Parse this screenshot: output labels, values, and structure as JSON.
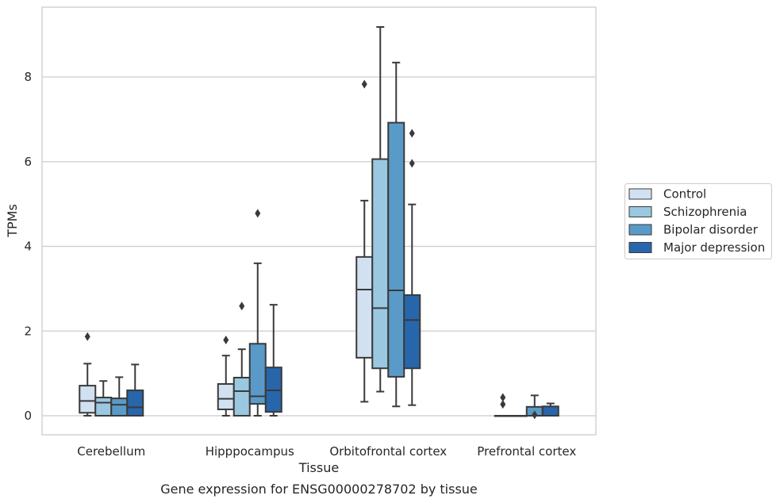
{
  "chart_data": {
    "type": "box",
    "caption": "Gene expression for ENSG00000278702 by tissue",
    "xlabel": "Tissue",
    "ylabel": "TPMs",
    "ylim": [
      -0.45,
      9.7
    ],
    "yticks": [
      0,
      2,
      4,
      6,
      8
    ],
    "grid": "horizontal",
    "legend_placement": "right, outside plot",
    "categories": [
      "Cerebellum",
      "Hipppocampus",
      "Orbitofrontal cortex",
      "Prefrontal cortex"
    ],
    "series": [
      {
        "name": "Control",
        "color": "#d1e1f1",
        "boxes": [
          {
            "whislo": 0.0,
            "q1": 0.07,
            "med": 0.35,
            "q3": 0.71,
            "whishi": 1.23,
            "fliers": [
              1.87
            ]
          },
          {
            "whislo": 0.0,
            "q1": 0.15,
            "med": 0.4,
            "q3": 0.75,
            "whishi": 1.42,
            "fliers": [
              1.79
            ]
          },
          {
            "whislo": 0.33,
            "q1": 1.37,
            "med": 2.98,
            "q3": 3.75,
            "whishi": 5.08,
            "fliers": [
              7.83
            ]
          },
          {
            "whislo": 0.0,
            "q1": 0.0,
            "med": 0.0,
            "q3": 0.0,
            "whishi": 0.0,
            "fliers": [
              0.27,
              0.43
            ]
          }
        ]
      },
      {
        "name": "Schizophrenia",
        "color": "#9ac8e0",
        "boxes": [
          {
            "whislo": 0.0,
            "q1": 0.0,
            "med": 0.31,
            "q3": 0.43,
            "whishi": 0.82,
            "fliers": []
          },
          {
            "whislo": 0.0,
            "q1": 0.0,
            "med": 0.58,
            "q3": 0.9,
            "whishi": 1.57,
            "fliers": [
              2.59
            ]
          },
          {
            "whislo": 0.57,
            "q1": 1.12,
            "med": 2.54,
            "q3": 6.06,
            "whishi": 9.18,
            "fliers": []
          },
          {
            "whislo": 0.0,
            "q1": 0.0,
            "med": 0.0,
            "q3": 0.0,
            "whishi": 0.0,
            "fliers": []
          }
        ]
      },
      {
        "name": "Bipolar disorder",
        "color": "#5a9ac8",
        "boxes": [
          {
            "whislo": 0.0,
            "q1": 0.0,
            "med": 0.26,
            "q3": 0.41,
            "whishi": 0.91,
            "fliers": []
          },
          {
            "whislo": 0.0,
            "q1": 0.28,
            "med": 0.46,
            "q3": 1.7,
            "whishi": 3.6,
            "fliers": [
              4.78
            ]
          },
          {
            "whislo": 0.22,
            "q1": 0.92,
            "med": 2.96,
            "q3": 6.92,
            "whishi": 8.34,
            "fliers": []
          },
          {
            "whislo": 0.0,
            "q1": 0.0,
            "med": 0.0,
            "q3": 0.21,
            "whishi": 0.48,
            "fliers": [
              0.02
            ]
          }
        ]
      },
      {
        "name": "Major depression",
        "color": "#2766ab",
        "boxes": [
          {
            "whislo": 0.0,
            "q1": 0.0,
            "med": 0.2,
            "q3": 0.6,
            "whishi": 1.21,
            "fliers": []
          },
          {
            "whislo": 0.0,
            "q1": 0.09,
            "med": 0.6,
            "q3": 1.14,
            "whishi": 2.62,
            "fliers": []
          },
          {
            "whislo": 0.25,
            "q1": 1.12,
            "med": 2.26,
            "q3": 2.85,
            "whishi": 4.99,
            "fliers": [
              5.96,
              6.67
            ]
          },
          {
            "whislo": 0.0,
            "q1": 0.0,
            "med": 0.0,
            "q3": 0.22,
            "whishi": 0.29,
            "fliers": []
          }
        ]
      }
    ]
  }
}
